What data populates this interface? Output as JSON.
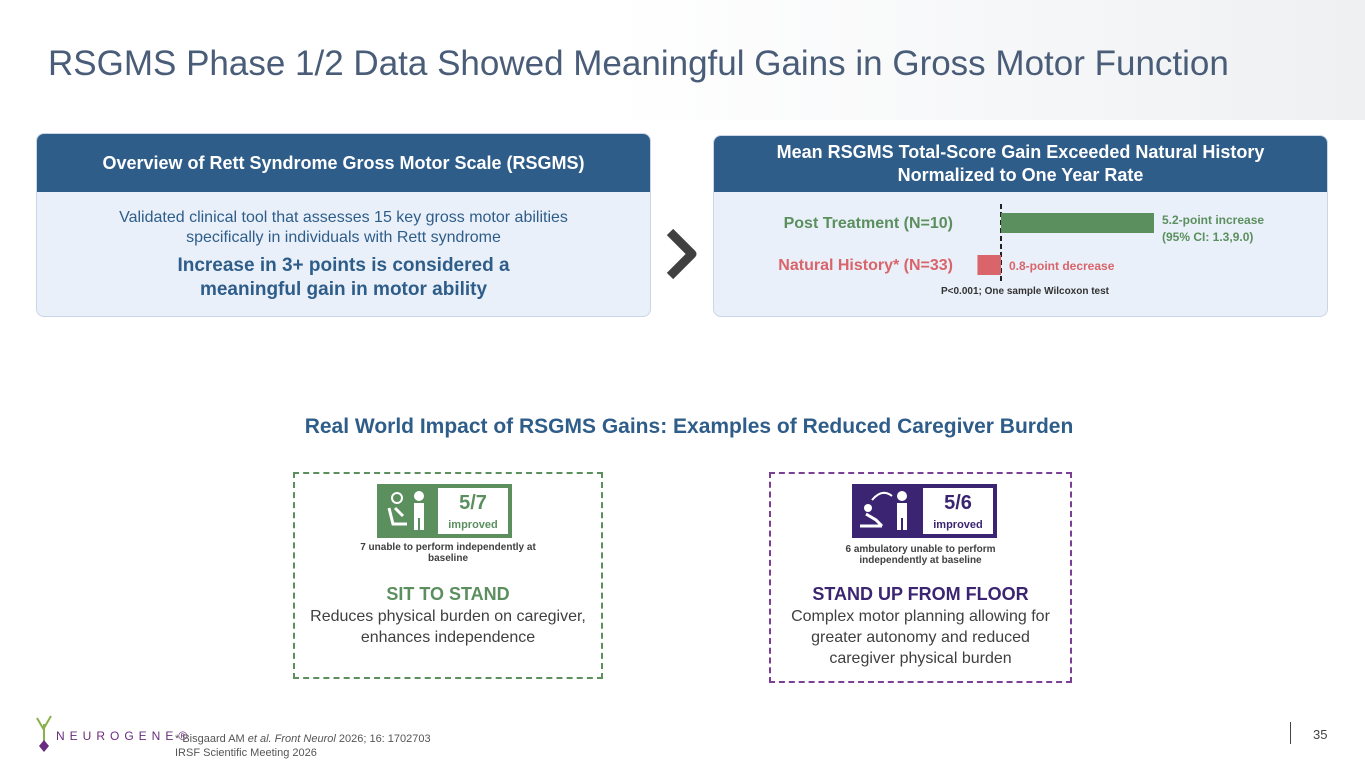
{
  "title": "RSGMS Phase 1/2 Data Showed Meaningful Gains in Gross Motor Function",
  "left_panel": {
    "header": "Overview of Rett Syndrome Gross Motor Scale (RSGMS)",
    "description": "Validated clinical tool that assesses 15 key gross motor abilities specifically in individuals with Rett syndrome",
    "highlight": "Increase in 3+ points is considered a meaningful gain in motor ability"
  },
  "right_panel": {
    "header": "Mean RSGMS Total-Score Gain Exceeded Natural History Normalized to One Year Rate"
  },
  "chart_data": {
    "type": "bar",
    "orientation": "horizontal",
    "categories": [
      "Post Treatment (N=10)",
      "Natural History* (N=33)"
    ],
    "values": [
      5.2,
      -0.8
    ],
    "value_labels": [
      "5.2-point increase",
      "0.8-point decrease"
    ],
    "colors": [
      "#5b8f5e",
      "#d9646a"
    ],
    "annotation": "(95% CI: 1.3,9.0)",
    "footnote": "P<0.001; One sample Wilcoxon test"
  },
  "impact": {
    "title": "Real World Impact of RSGMS Gains: Examples of Reduced Caregiver Burden",
    "cards": [
      {
        "score": "5/7",
        "score_label": "improved",
        "baseline": "7 unable to perform independently at baseline",
        "heading": "SIT TO STAND",
        "description": "Reduces physical burden on caregiver, enhances independence"
      },
      {
        "score": "5/6",
        "score_label": "improved",
        "baseline": "6 ambulatory unable to perform independently at baseline",
        "heading": "STAND UP FROM FLOOR",
        "description": "Complex motor planning allowing for greater autonomy and reduced caregiver physical burden"
      }
    ]
  },
  "footer": {
    "logo": "NEUROGENE®",
    "citation_prefix": "* Bisgaard AM ",
    "citation_italic": "et al. Front Neurol",
    "citation_suffix": " 2026; 16: 1702703",
    "meeting": "IRSF Scientific Meeting 2026",
    "page": "35"
  }
}
